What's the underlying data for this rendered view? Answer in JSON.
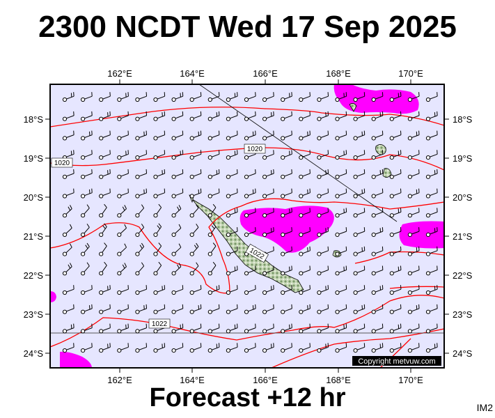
{
  "header": {
    "title": "2300 NCDT Wed 17 Sep 2025"
  },
  "footer": {
    "subtitle": "Forecast +12 hr",
    "product_code": "IM2"
  },
  "map": {
    "lon_labels": [
      "162°E",
      "164°E",
      "166°E",
      "168°E",
      "170°E"
    ],
    "lat_labels": [
      "18°S",
      "19°S",
      "20°S",
      "21°S",
      "22°S",
      "23°S",
      "24°S"
    ],
    "isobar_labels": [
      "1020",
      "1020",
      "1022",
      "1022"
    ],
    "copyright": "Copyright metvuw.com",
    "colors": {
      "background": "#e6e6ff",
      "precipitation": "#ff00ff",
      "isobar": "#ff0000",
      "land": "#b8c9a8"
    }
  }
}
